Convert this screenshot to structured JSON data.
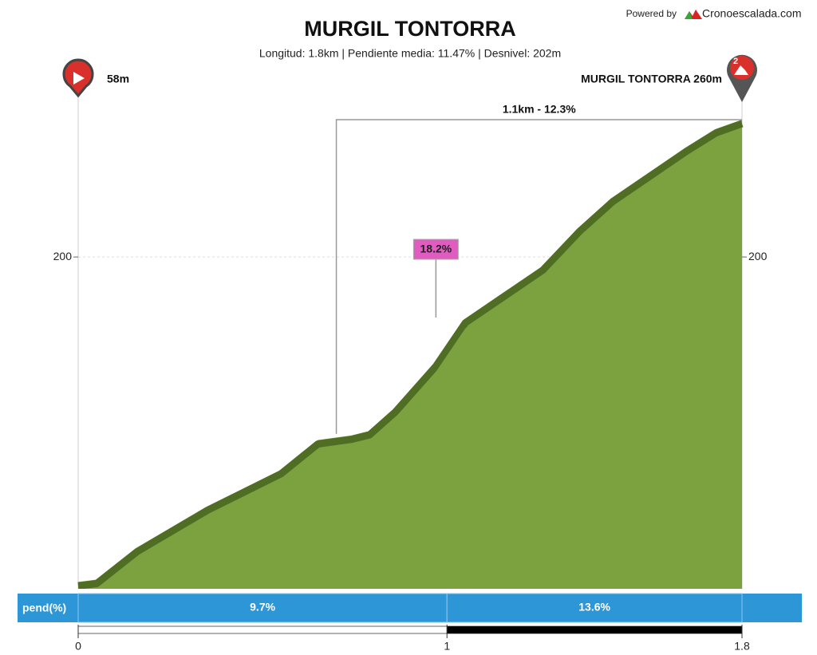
{
  "header": {
    "powered_by": "Powered by",
    "brand": "Cronoescalada.com"
  },
  "chart_data": {
    "type": "area",
    "title": "MURGIL TONTORRA",
    "subtitle": "Longitud: 1.8km | Pendiente media: 11.47% | Desnivel: 202m",
    "x": [
      0,
      0.05,
      0.16,
      0.35,
      0.55,
      0.65,
      0.74,
      0.79,
      0.86,
      0.97,
      1.05,
      1.26,
      1.36,
      1.45,
      1.65,
      1.73,
      1.8
    ],
    "values": [
      58,
      59,
      73,
      91,
      107,
      120,
      122,
      124,
      134,
      154,
      173,
      196,
      213,
      226,
      248,
      256,
      260
    ],
    "color": "#7ba23f",
    "shadow_color": "#4f6e24",
    "xlim": [
      0,
      1.8
    ],
    "xticks": [
      0,
      1,
      1.8
    ],
    "ylim": [
      55,
      260
    ],
    "yticks": [
      200
    ],
    "grid": true,
    "start_label": "58m",
    "end_label": "MURGIL TONTORRA 260m",
    "category": "2",
    "sector_label": "1.1km - 12.3%",
    "sector_start": 0.7,
    "peak_label": "18.2%",
    "peak_x": 0.97,
    "gradient": {
      "label": "pend(%)",
      "bins": [
        0,
        1,
        1.8
      ],
      "values": [
        9.7,
        13.6
      ],
      "value_labels": [
        "9.7%",
        "13.6%"
      ],
      "color": "#2d96d6"
    }
  }
}
